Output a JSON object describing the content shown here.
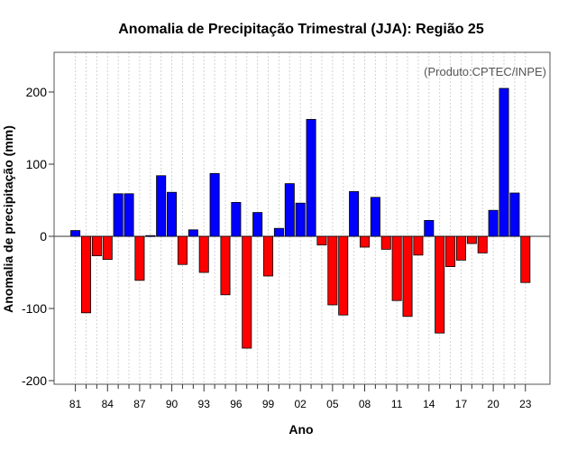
{
  "chart_data": {
    "type": "bar",
    "title": "Anomalia de Precipitação Trimestral (JJA): Região 25",
    "xlabel": "Ano",
    "ylabel": "Anomalia de precipitação (mm)",
    "annotation": "(Produto:CPTEC/INPE)",
    "ylim": [
      -205,
      255
    ],
    "yticks": [
      -200,
      -100,
      0,
      100,
      200
    ],
    "xtick_labels": [
      "81",
      "84",
      "87",
      "90",
      "93",
      "96",
      "99",
      "02",
      "05",
      "08",
      "11",
      "14",
      "17",
      "20",
      "23"
    ],
    "grid": true,
    "colors": {
      "positive": "#0000ff",
      "negative": "#ff0000",
      "edge": "#000000",
      "grid": "#d3d3d3"
    },
    "categories": [
      "1981",
      "1982",
      "1983",
      "1984",
      "1985",
      "1986",
      "1987",
      "1988",
      "1989",
      "1990",
      "1991",
      "1992",
      "1993",
      "1994",
      "1995",
      "1996",
      "1997",
      "1998",
      "1999",
      "2000",
      "2001",
      "2002",
      "2003",
      "2004",
      "2005",
      "2006",
      "2007",
      "2008",
      "2009",
      "2010",
      "2011",
      "2012",
      "2013",
      "2014",
      "2015",
      "2016",
      "2017",
      "2018",
      "2019",
      "2020",
      "2021",
      "2022",
      "2023"
    ],
    "values": [
      8,
      -106,
      -27,
      -32,
      59,
      59,
      -61,
      1,
      84,
      61,
      -39,
      9,
      -50,
      87,
      -81,
      47,
      -155,
      33,
      -55,
      11,
      73,
      46,
      162,
      -12,
      -95,
      -109,
      62,
      -15,
      54,
      -18,
      -89,
      -111,
      -26,
      22,
      -134,
      -42,
      -33,
      -10,
      -23,
      36,
      205,
      60,
      -64
    ]
  }
}
